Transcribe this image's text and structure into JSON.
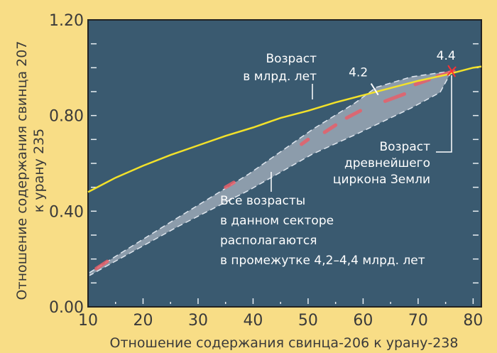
{
  "chart_data": {
    "type": "line",
    "title": "",
    "xlabel": "Отношение содержания свинца-206 к урану-238",
    "ylabel_lines": [
      "Отношение содержания свинца 207",
      "к урану 235"
    ],
    "xlim": [
      10,
      81.5
    ],
    "ylim": [
      0,
      1.2
    ],
    "x_ticks": [
      10,
      20,
      30,
      40,
      50,
      60,
      70,
      80
    ],
    "x_tick_labels": [
      "10",
      "20",
      "30",
      "40",
      "50",
      "60",
      "70",
      "80"
    ],
    "y_ticks": [
      0,
      0.4,
      0.8,
      1.2
    ],
    "y_tick_labels": [
      "0.00",
      "0.40",
      "0.80",
      "1.20"
    ],
    "grid": false,
    "colors": {
      "background": "#f8dd86",
      "plot": "#3a5a70",
      "concordia": "#f2e12a",
      "band": "#8c9cab",
      "band_edge": "#dfe6ee",
      "points": "#e8606a",
      "text": "#ffffff"
    },
    "series": [
      {
        "kind": "curve",
        "x": [
          10,
          15,
          20,
          25,
          30,
          35,
          40,
          45,
          50,
          55,
          60,
          65,
          70,
          75,
          80,
          81.5
        ],
        "y": [
          0.48,
          0.54,
          0.59,
          0.635,
          0.675,
          0.715,
          0.75,
          0.79,
          0.82,
          0.855,
          0.885,
          0.915,
          0.945,
          0.97,
          1.0,
          1.005
        ]
      },
      {
        "kind": "band",
        "upper": {
          "x": [
            10.26,
            26.6,
            39.2,
            50.8,
            58.5,
            62.4,
            68.8,
            76.1
          ],
          "y": [
            0.143,
            0.377,
            0.555,
            0.742,
            0.852,
            0.918,
            0.962,
            0.986
          ]
        },
        "lower": {
          "x": [
            76.1,
            74,
            68.8,
            58.5,
            50.8,
            39.2,
            26.6,
            10.26
          ],
          "y": [
            0.986,
            0.897,
            0.832,
            0.719,
            0.639,
            0.487,
            0.339,
            0.131
          ]
        }
      },
      {
        "kind": "measurements",
        "segments": [
          [
            [
              11.5,
              0.16
            ],
            [
              13.5,
              0.19
            ]
          ],
          [
            [
              35,
              0.5
            ],
            [
              36.5,
              0.52
            ]
          ],
          [
            [
              48.8,
              0.68
            ],
            [
              50,
              0.7
            ]
          ],
          [
            [
              53,
              0.73
            ],
            [
              55,
              0.76
            ]
          ],
          [
            [
              57,
              0.79
            ],
            [
              59.5,
              0.82
            ]
          ],
          [
            [
              64,
              0.86
            ],
            [
              67.5,
              0.89
            ]
          ],
          [
            [
              69.5,
              0.93
            ],
            [
              72,
              0.95
            ]
          ],
          [
            [
              73.5,
              0.965
            ],
            [
              76.5,
              0.985
            ]
          ]
        ]
      }
    ],
    "markers": [
      {
        "label": "4.2",
        "x": 62.1,
        "y": 0.91
      },
      {
        "label": "4.4",
        "x": 76.1,
        "y": 0.986
      }
    ],
    "annotations": [
      {
        "lines": [
          "Возраст",
          "в млрд. лет"
        ]
      },
      {
        "lines": [
          "Возраст",
          "древнейшего",
          "циркона Земли"
        ]
      },
      {
        "lines": [
          "Все возрасты",
          "в данном секторе",
          "располагаются",
          "в промежутке 4,2–4,4 млрд. лет"
        ]
      }
    ]
  }
}
